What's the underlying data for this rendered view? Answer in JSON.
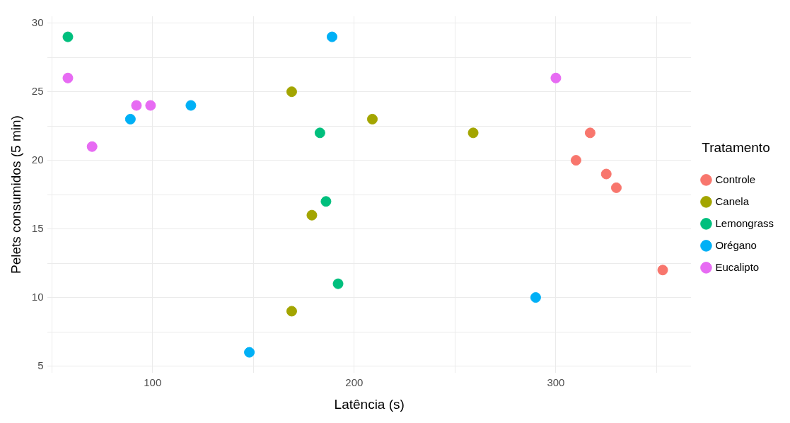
{
  "chart_data": {
    "type": "scatter",
    "xlabel": "Latência (s)",
    "ylabel": "Pelets consumidos (5 min)",
    "legend_title": "Tratamento",
    "legend": "right",
    "grid": true,
    "marker": "circle",
    "xlim": [
      48,
      367
    ],
    "ylim": [
      4.5,
      30.5
    ],
    "xticks": [
      {
        "value": 50,
        "label": null
      },
      100,
      {
        "value": 150,
        "label": null
      },
      200,
      {
        "value": 250,
        "label": null
      },
      300,
      {
        "value": 350,
        "label": null
      }
    ],
    "yticks": [
      5,
      {
        "value": 7.5,
        "label": null
      },
      10,
      {
        "value": 12.5,
        "label": null
      },
      15,
      {
        "value": 17.5,
        "label": null
      },
      20,
      {
        "value": 22.5,
        "label": null
      },
      25,
      {
        "value": 27.5,
        "label": null
      },
      30
    ],
    "series": [
      {
        "name": "Controle",
        "color": "#f8766d",
        "x": [
          310,
          317,
          325,
          330,
          353
        ],
        "values": [
          20,
          22,
          19,
          18,
          12
        ]
      },
      {
        "name": "Canela",
        "color": "#a3a500",
        "x": [
          169,
          209,
          259,
          179,
          169
        ],
        "values": [
          25,
          23,
          22,
          16,
          9
        ]
      },
      {
        "name": "Lemongrass",
        "color": "#00bf7d",
        "x": [
          58,
          183,
          186,
          192
        ],
        "values": [
          29,
          22,
          17,
          11
        ]
      },
      {
        "name": "Orégano",
        "color": "#00b0f6",
        "x": [
          189,
          119,
          89,
          148,
          290
        ],
        "values": [
          29,
          24,
          23,
          6,
          10
        ]
      },
      {
        "name": "Eucalipto",
        "color": "#e76bf3",
        "x": [
          58,
          99,
          92,
          70,
          300
        ],
        "values": [
          26,
          24,
          24,
          21,
          26
        ]
      }
    ]
  }
}
